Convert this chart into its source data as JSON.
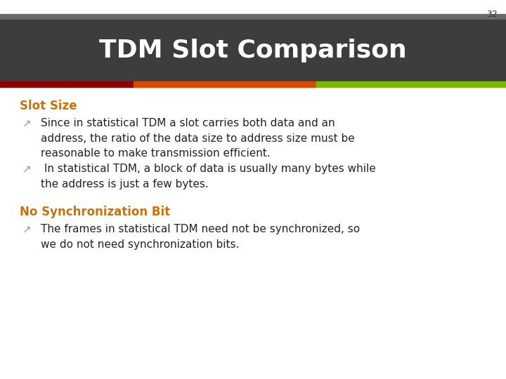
{
  "slide_number": "32",
  "title": "TDM Slot Comparison",
  "title_bg_color": "#3d3d3d",
  "top_bar_color": "#6a6a6a",
  "bar_colors": [
    "#8b0000",
    "#d84a00",
    "#7db800"
  ],
  "bg_color": "#ffffff",
  "slide_number_color": "#333333",
  "section_heading_color": "#c8720a",
  "bullet_arrow_color": "#999999",
  "body_text_color": "#222222",
  "sections": [
    {
      "heading": "Slot Size",
      "bullets": [
        "Since in statistical TDM a slot carries both data and an\naddress, the ratio of the data size to address size must be\nreasonable to make transmission efficient.",
        " In statistical TDM, a block of data is usually many bytes while\nthe address is just a few bytes."
      ],
      "bold_bullets": [
        false,
        false
      ]
    },
    {
      "heading": "No Synchronization Bit",
      "bullets": [
        "The frames in statistical TDM need not be synchronized, so\nwe do not need synchronization bits."
      ],
      "bold_bullets": [
        false
      ]
    }
  ]
}
